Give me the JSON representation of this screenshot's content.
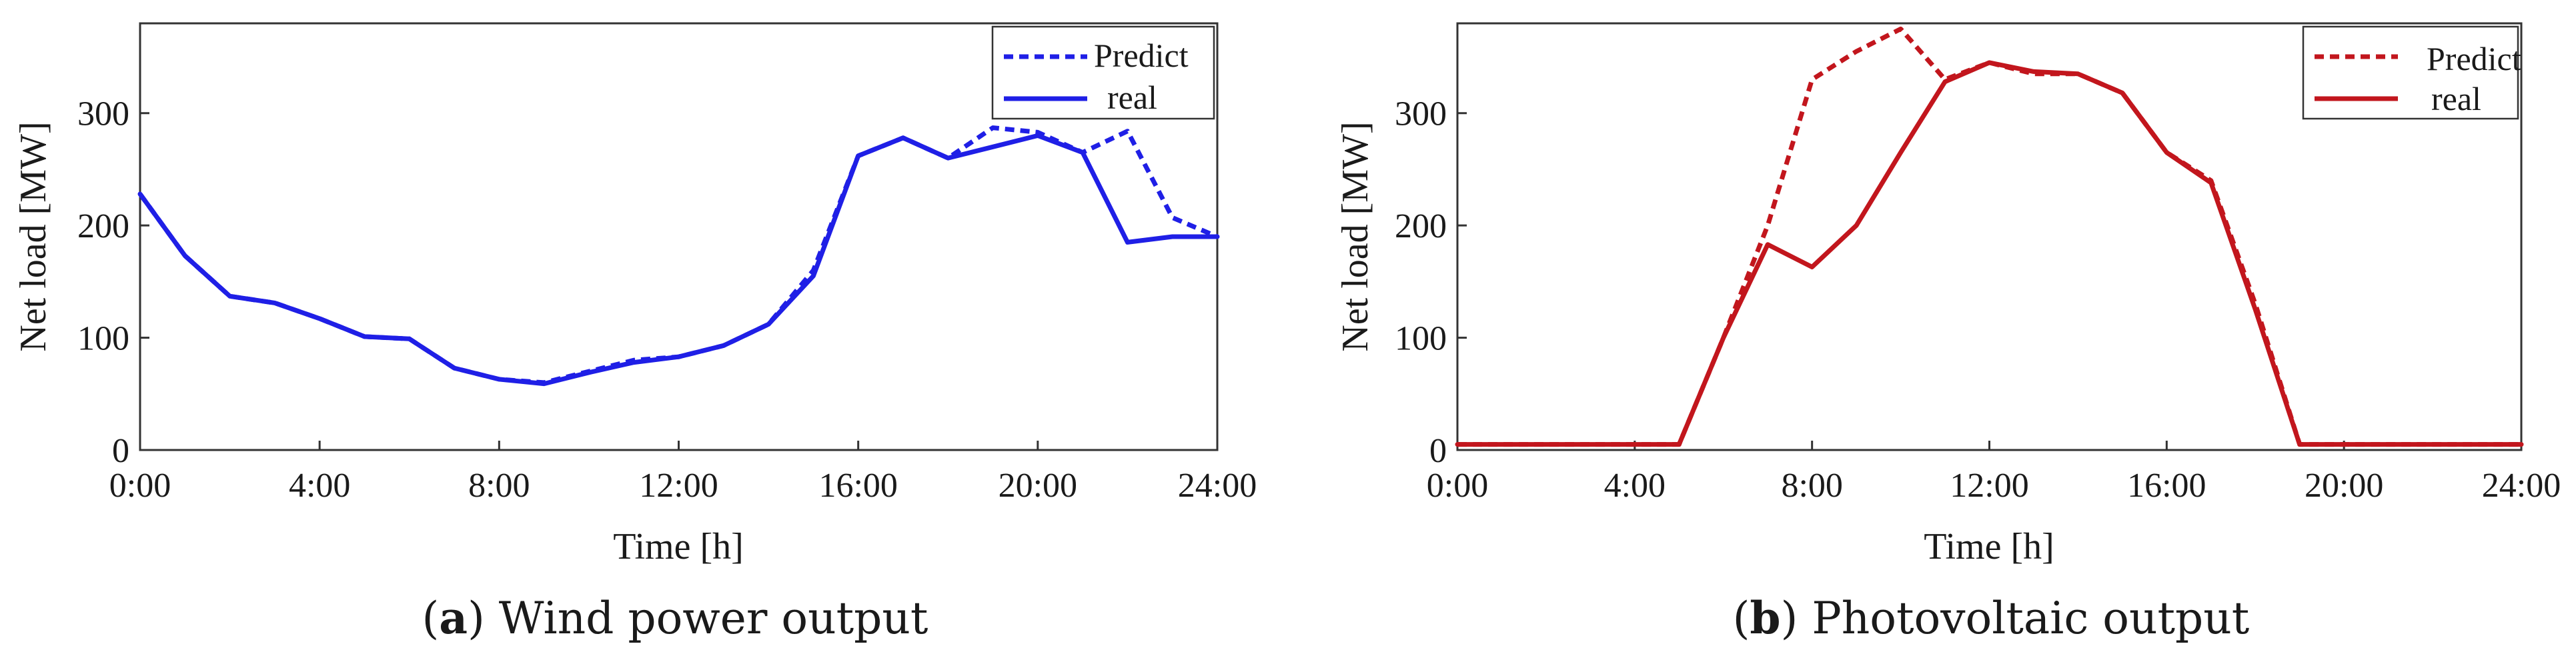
{
  "chart_data": [
    {
      "type": "line",
      "panel": "a",
      "caption_letter": "a",
      "caption_text": "Wind power output",
      "xlabel": "Time [h]",
      "ylabel": "Net load [MW]",
      "xlim": [
        0,
        24
      ],
      "ylim": [
        0,
        380
      ],
      "x_ticks": [
        0,
        4,
        8,
        12,
        16,
        20,
        24
      ],
      "x_tick_labels": [
        "0:00",
        "4:00",
        "8:00",
        "12:00",
        "16:00",
        "20:00",
        "24:00"
      ],
      "y_ticks": [
        0,
        100,
        200,
        300
      ],
      "y_tick_labels": [
        "0",
        "100",
        "200",
        "300"
      ],
      "grid": false,
      "legend_position": "top-right",
      "series": [
        {
          "name": "Predict",
          "style": "dashed",
          "color": "#1f1fe6",
          "x": [
            0,
            1,
            2,
            3,
            4,
            5,
            6,
            7,
            8,
            9,
            10,
            11,
            12,
            13,
            14,
            15,
            16,
            17,
            18,
            19,
            20,
            21,
            22,
            23,
            24
          ],
          "values": [
            228,
            173,
            137,
            131,
            117,
            101,
            99,
            73,
            63,
            60,
            70,
            80,
            83,
            93,
            112,
            160,
            262,
            278,
            260,
            287,
            283,
            265,
            284,
            207,
            190
          ]
        },
        {
          "name": "real",
          "style": "solid",
          "color": "#1f1fe6",
          "x": [
            0,
            1,
            2,
            3,
            4,
            5,
            6,
            7,
            8,
            9,
            10,
            11,
            12,
            13,
            14,
            15,
            16,
            17,
            18,
            19,
            20,
            21,
            22,
            23,
            24
          ],
          "values": [
            228,
            173,
            137,
            131,
            117,
            101,
            99,
            73,
            63,
            59,
            69,
            78,
            83,
            93,
            112,
            155,
            262,
            278,
            260,
            270,
            280,
            265,
            185,
            190,
            190
          ]
        }
      ]
    },
    {
      "type": "line",
      "panel": "b",
      "caption_letter": "b",
      "caption_text": "Photovoltaic output",
      "xlabel": "Time [h]",
      "ylabel": "Net load [MW]",
      "xlim": [
        0,
        24
      ],
      "ylim": [
        0,
        380
      ],
      "x_ticks": [
        0,
        4,
        8,
        12,
        16,
        20,
        24
      ],
      "x_tick_labels": [
        "0:00",
        "4:00",
        "8:00",
        "12:00",
        "16:00",
        "20:00",
        "24:00"
      ],
      "y_ticks": [
        0,
        100,
        200,
        300
      ],
      "y_tick_labels": [
        "0",
        "100",
        "200",
        "300"
      ],
      "grid": false,
      "legend_position": "top-right",
      "series": [
        {
          "name": "Predict",
          "style": "dashed",
          "color": "#c2161d",
          "x": [
            0,
            1,
            2,
            3,
            4,
            5,
            6,
            7,
            8,
            9,
            10,
            11,
            12,
            13,
            14,
            15,
            16,
            17,
            18,
            19,
            20,
            21,
            22,
            23,
            24
          ],
          "values": [
            5,
            5,
            5,
            5,
            5,
            5,
            100,
            200,
            330,
            355,
            375,
            330,
            345,
            335,
            335,
            318,
            265,
            240,
            130,
            5,
            5,
            5,
            5,
            5,
            5
          ]
        },
        {
          "name": "real",
          "style": "solid",
          "color": "#c2161d",
          "x": [
            0,
            1,
            2,
            3,
            4,
            5,
            6,
            7,
            8,
            9,
            10,
            11,
            12,
            13,
            14,
            15,
            16,
            17,
            18,
            19,
            20,
            21,
            22,
            23,
            24
          ],
          "values": [
            5,
            5,
            5,
            5,
            5,
            5,
            100,
            183,
            163,
            200,
            265,
            328,
            345,
            337,
            335,
            318,
            265,
            238,
            125,
            5,
            5,
            5,
            5,
            5,
            5
          ]
        }
      ]
    }
  ]
}
